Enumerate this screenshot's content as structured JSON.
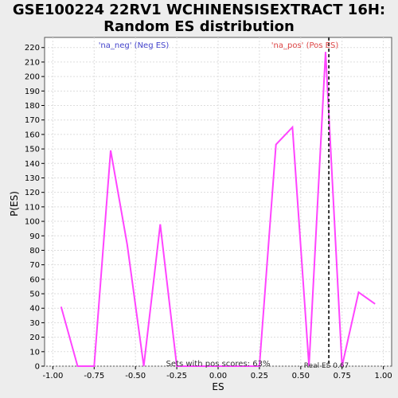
{
  "chart_data": {
    "type": "line",
    "title_line1": "GSE100224 22RV1 WCHINENSISEXTRACT 16H:",
    "title_line2": "Random ES distribution",
    "xlabel": "ES",
    "ylabel": "P(ES)",
    "xlim": [
      -1.05,
      1.05
    ],
    "ylim": [
      0,
      227
    ],
    "x_ticks": [
      "-1.00",
      "-0.75",
      "-0.50",
      "-0.25",
      "0.00",
      "0.25",
      "0.50",
      "0.75",
      "1.00"
    ],
    "x_tick_values": [
      -1.0,
      -0.75,
      -0.5,
      -0.25,
      0.0,
      0.25,
      0.5,
      0.75,
      1.0
    ],
    "y_ticks": [
      0,
      10,
      20,
      30,
      40,
      50,
      60,
      70,
      80,
      90,
      100,
      110,
      120,
      130,
      140,
      150,
      160,
      170,
      180,
      190,
      200,
      210,
      220
    ],
    "grid": true,
    "series": [
      {
        "color": "#ff44ff",
        "x": [
          -0.95,
          -0.85,
          -0.75,
          -0.65,
          -0.55,
          -0.45,
          -0.35,
          -0.25,
          -0.15,
          -0.05,
          0.05,
          0.15,
          0.25,
          0.35,
          0.45,
          0.55,
          0.65,
          0.75,
          0.85,
          0.95
        ],
        "values": [
          41,
          0,
          0,
          149,
          84,
          0,
          98,
          0,
          0,
          0,
          0,
          0,
          0,
          153,
          165,
          0,
          217,
          0,
          51,
          43
        ]
      }
    ],
    "real_es": 0.67,
    "annotations": {
      "neg_label": "'na_neg' (Neg ES)",
      "pos_label": "'na_pos' (Pos ES)",
      "sets_text": "Sets with pos scores: 63%",
      "real_es_text": "Real ES 0.67"
    },
    "colors": {
      "neg": "#4444cc",
      "pos": "#dd4444",
      "line": "#ff44ff",
      "grid": "#dddddd",
      "marker": "#333333"
    }
  }
}
